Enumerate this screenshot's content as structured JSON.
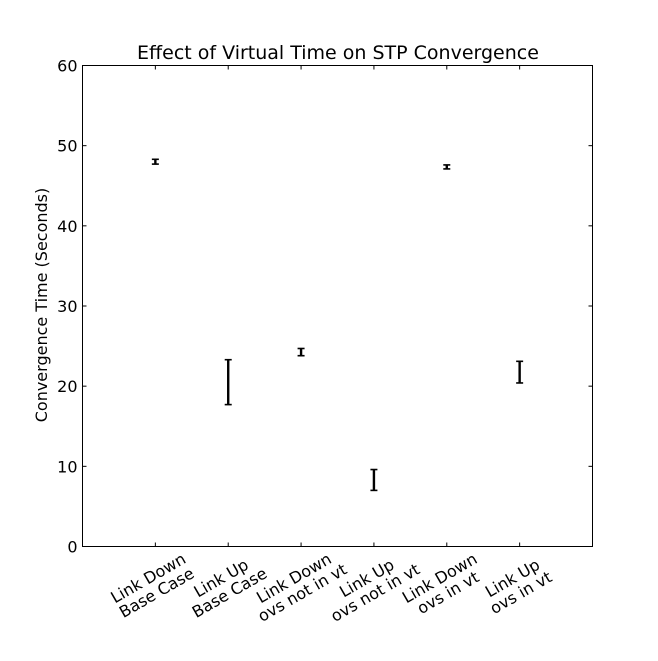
{
  "chart_data": {
    "type": "errorbar",
    "title": "Effect of Virtual Time on STP Convergence",
    "xlabel": "",
    "ylabel": "Convergence Time (Seconds)",
    "ylim": [
      0,
      60
    ],
    "yticks": [
      0,
      10,
      20,
      30,
      40,
      50,
      60
    ],
    "xlim": [
      0,
      7
    ],
    "grid": false,
    "categories": [
      [
        "Link Down",
        "Base Case"
      ],
      [
        "Link Up",
        "Base Case"
      ],
      [
        "Link Down",
        "ovs not in vt"
      ],
      [
        "Link Up",
        "ovs not in vt"
      ],
      [
        "Link Down",
        "ovs in vt"
      ],
      [
        "Link Up",
        "ovs in vt"
      ]
    ],
    "x": [
      1,
      2,
      3,
      4,
      5,
      6
    ],
    "lower": [
      47.7,
      17.7,
      23.8,
      7.0,
      47.1,
      20.4
    ],
    "upper": [
      48.3,
      23.3,
      24.7,
      9.6,
      47.6,
      23.1
    ],
    "series_color": "#000000"
  }
}
